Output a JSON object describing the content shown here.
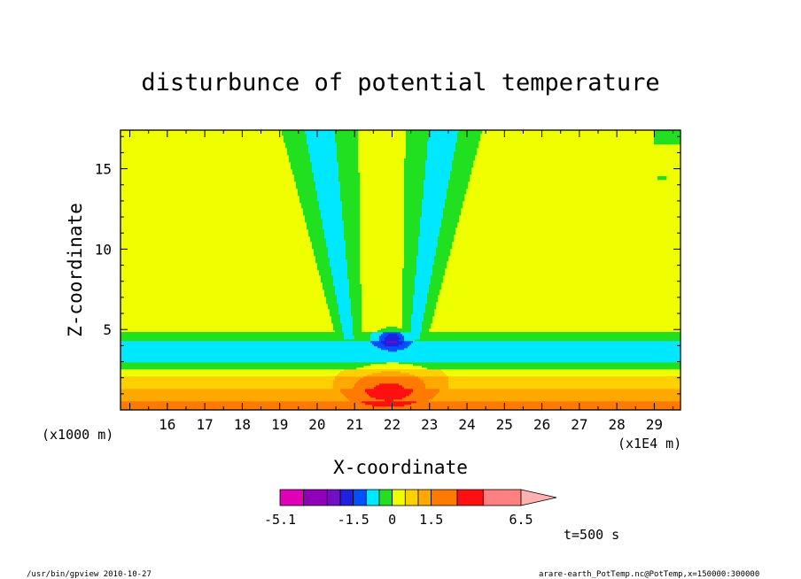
{
  "chart_data": {
    "type": "heatmap",
    "title": "disturbunce of potential temperature",
    "xlabel": "X-coordinate",
    "ylabel": "Z-coordinate",
    "x_unit_label": "(x1E4 m)",
    "y_unit_label": "(x1000 m)",
    "xlim": [
      14.75,
      29.7
    ],
    "ylim": [
      0,
      17.4
    ],
    "x_ticks": [
      16,
      17,
      18,
      19,
      20,
      21,
      22,
      23,
      24,
      25,
      26,
      27,
      28,
      29
    ],
    "y_ticks": [
      5,
      10,
      15
    ],
    "colorbar": {
      "levels": [
        -5.1,
        -4.1,
        -3.1,
        -2.1,
        -1.5,
        -1.0,
        -0.5,
        0,
        0.5,
        1.0,
        1.5,
        2.5,
        3.5,
        4.5,
        6.5
      ],
      "labeled_levels": [
        -5.1,
        -1.5,
        0,
        1.5,
        6.5
      ],
      "labels": [
        "-5.1",
        "-1.5",
        "0",
        "1.5",
        "6.5"
      ],
      "colors": [
        "#e000b8",
        "#9000b8",
        "#7010c0",
        "#2020e0",
        "#0050ff",
        "#00e8ff",
        "#20e020",
        "#f0ff00",
        "#ffd000",
        "#ffa800",
        "#ff7a00",
        "#ff1010",
        "#ff8080",
        "#ffb0b0"
      ],
      "extend_max": true
    },
    "background_value": 0.3,
    "structure": {
      "bands_vs_z": [
        {
          "z": [
            0.0,
            0.6
          ],
          "value": 2.0
        },
        {
          "z": [
            0.6,
            1.3
          ],
          "value": 1.2
        },
        {
          "z": [
            1.3,
            2.1
          ],
          "value": 0.8
        },
        {
          "z": [
            2.1,
            2.5
          ],
          "value": 0.3
        },
        {
          "z": [
            2.5,
            3.0
          ],
          "value": -0.3
        },
        {
          "z": [
            3.0,
            4.3
          ],
          "value": -0.8
        },
        {
          "z": [
            4.3,
            4.8
          ],
          "value": -0.3
        }
      ],
      "plume_centers_x": [
        20.85,
        22.6
      ],
      "min_center": {
        "x": 22.0,
        "z": 4.4,
        "value": -1.8
      },
      "max_center": {
        "x": 21.9,
        "z": 1.1,
        "value": 3.0
      }
    }
  },
  "time_label": "t=500 s",
  "footer": {
    "left": "/usr/bin/gpview   2010-10-27",
    "right": "arare-earth_PotTemp.nc@PotTemp,x=150000:300000"
  }
}
